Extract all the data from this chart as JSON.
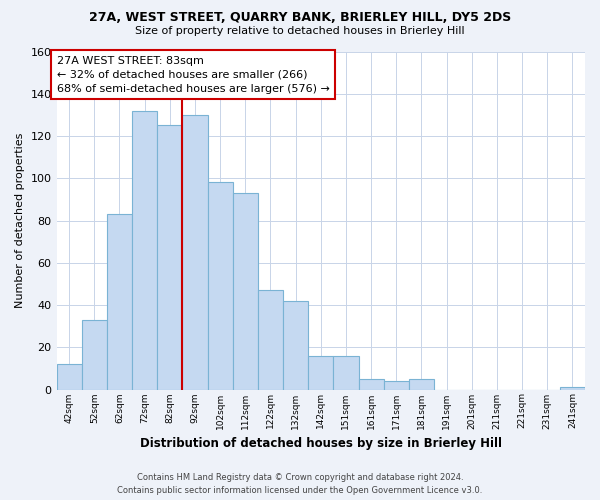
{
  "title1": "27A, WEST STREET, QUARRY BANK, BRIERLEY HILL, DY5 2DS",
  "title2": "Size of property relative to detached houses in Brierley Hill",
  "xlabel": "Distribution of detached houses by size in Brierley Hill",
  "ylabel": "Number of detached properties",
  "footnote": "Contains HM Land Registry data © Crown copyright and database right 2024.\nContains public sector information licensed under the Open Government Licence v3.0.",
  "bar_labels": [
    "42sqm",
    "52sqm",
    "62sqm",
    "72sqm",
    "82sqm",
    "92sqm",
    "102sqm",
    "112sqm",
    "122sqm",
    "132sqm",
    "142sqm",
    "151sqm",
    "161sqm",
    "171sqm",
    "181sqm",
    "191sqm",
    "201sqm",
    "211sqm",
    "221sqm",
    "231sqm",
    "241sqm"
  ],
  "bar_values": [
    12,
    33,
    83,
    132,
    125,
    130,
    98,
    93,
    47,
    42,
    16,
    16,
    5,
    4,
    5,
    0,
    0,
    0,
    0,
    0,
    1
  ],
  "bar_color": "#c5d9f1",
  "bar_edge_color": "#7ab3d4",
  "marker_line_color": "#cc0000",
  "annotation_line1": "27A WEST STREET: 83sqm",
  "annotation_line2": "← 32% of detached houses are smaller (266)",
  "annotation_line3": "68% of semi-detached houses are larger (576) →",
  "ylim": [
    0,
    160
  ],
  "yticks": [
    0,
    20,
    40,
    60,
    80,
    100,
    120,
    140,
    160
  ],
  "bg_color": "#eef2f9",
  "plot_bg_color": "#ffffff",
  "grid_color": "#c8d4e8",
  "red_line_idx": 4
}
